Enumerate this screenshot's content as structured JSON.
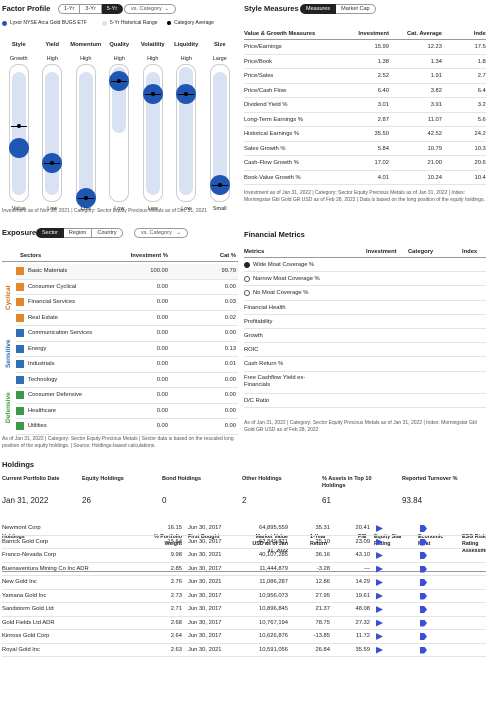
{
  "factor": {
    "title": "Factor Profile",
    "tabs": [
      "1-Yr",
      "3-Yr",
      "5-Yr"
    ],
    "active_tab": "5-Yr",
    "compare": "vs. Category",
    "legend": [
      "Lyxor NYSE Arca Gold BUGS ETF",
      "5-Yr Historical Range",
      "Category Average"
    ],
    "columns": [
      {
        "name": "Style",
        "top": "Growth",
        "bottom": "Value",
        "range": [
          0.06,
          0.95
        ],
        "fund": 0.61,
        "cat": 0.45
      },
      {
        "name": "Yield",
        "top": "High",
        "bottom": "Low",
        "range": [
          0.06,
          0.95
        ],
        "fund": 0.72,
        "cat": 0.72
      },
      {
        "name": "Momentum",
        "top": "High",
        "bottom": "Low",
        "range": [
          0.06,
          0.95
        ],
        "fund": 0.97,
        "cat": 0.97
      },
      {
        "name": "Quality",
        "top": "High",
        "bottom": "Low",
        "range": [
          0.02,
          0.5
        ],
        "fund": 0.12,
        "cat": 0.12
      },
      {
        "name": "Volatility",
        "top": "High",
        "bottom": "Low",
        "range": [
          0.06,
          0.95
        ],
        "fund": 0.22,
        "cat": 0.22
      },
      {
        "name": "Liquidity",
        "top": "High",
        "bottom": "Low",
        "range": [
          0.02,
          0.95
        ],
        "fund": 0.22,
        "cat": 0.22
      },
      {
        "name": "Size",
        "top": "Large",
        "bottom": "Small",
        "range": [
          0.06,
          0.95
        ],
        "fund": 0.88,
        "cat": 0.88
      }
    ],
    "note": "Investment as of Nov 30, 2021 | Category: Sector Equity Precious Metals as of Dec 31, 2021"
  },
  "style": {
    "title": "Style Measures",
    "tabs": [
      "Measures",
      "Market Cap"
    ],
    "active_tab": "Measures",
    "headers": [
      "Value & Growth Measures",
      "Investment",
      "Cat. Average",
      "Index"
    ],
    "rows": [
      [
        "Price/Earnings",
        "15.99",
        "12.23",
        "17.59"
      ],
      [
        "Price/Book",
        "1.38",
        "1.34",
        "1.81"
      ],
      [
        "Price/Sales",
        "2.52",
        "1.91",
        "2.70"
      ],
      [
        "Price/Cash Flow",
        "6.40",
        "3.82",
        "6.43"
      ],
      [
        "Dividend Yield %",
        "3.01",
        "3.91",
        "3.22"
      ],
      [
        "Long-Term Earnings %",
        "2.87",
        "11.07",
        "5.66"
      ],
      [
        "Historical Earnings %",
        "35.50",
        "42.52",
        "24.20"
      ],
      [
        "Sales Growth %",
        "5.84",
        "10.79",
        "10.32"
      ],
      [
        "Cash-Flow Growth %",
        "17.02",
        "21.00",
        "20.66"
      ],
      [
        "Book-Value Growth %",
        "4.01",
        "10.24",
        "10.45"
      ]
    ],
    "note": "Investment as of Jan 31, 2022 | Category: Sector Equity Precious Metals as of Jan 31, 2022 | Index: Morningstar Gbl Gold GR USD as of Feb 28, 2022 | Data is based on the long position of the equity holdings."
  },
  "exposure": {
    "title": "Exposure",
    "tabs": [
      "Sector",
      "Region",
      "Country"
    ],
    "active_tab": "Sector",
    "compare": "vs. Category",
    "headers": [
      "Sectors",
      "Investment %",
      "Cat %"
    ],
    "groups": [
      "Cyclical",
      "Sensitive",
      "Defensive"
    ],
    "rows": [
      {
        "name": "Basic Materials",
        "inv": "100.00",
        "cat": "99.79",
        "color": "#e0882b",
        "highlight": true
      },
      {
        "name": "Consumer Cyclical",
        "inv": "0.00",
        "cat": "0.00",
        "color": "#e0882b"
      },
      {
        "name": "Financial Services",
        "inv": "0.00",
        "cat": "0.03",
        "color": "#e0882b"
      },
      {
        "name": "Real Estate",
        "inv": "0.00",
        "cat": "0.02",
        "color": "#e0882b"
      },
      {
        "name": "Communication Services",
        "inv": "0.00",
        "cat": "0.00",
        "color": "#2f6fb8"
      },
      {
        "name": "Energy",
        "inv": "0.00",
        "cat": "0.13",
        "color": "#2f6fb8"
      },
      {
        "name": "Industrials",
        "inv": "0.00",
        "cat": "0.01",
        "color": "#2f6fb8"
      },
      {
        "name": "Technology",
        "inv": "0.00",
        "cat": "0.00",
        "color": "#2f6fb8"
      },
      {
        "name": "Consumer Defensive",
        "inv": "0.00",
        "cat": "0.00",
        "color": "#3c9a46"
      },
      {
        "name": "Healthcare",
        "inv": "0.00",
        "cat": "0.00",
        "color": "#3c9a46"
      },
      {
        "name": "Utilities",
        "inv": "0.00",
        "cat": "0.00",
        "color": "#3c9a46"
      }
    ],
    "note": "As of Jan 31, 2022 | Category: Sector Equity Precious Metals | Sector data is based on the rescaled long position of the equity holdings. | Source: Holdings-based calculations."
  },
  "financial": {
    "title": "Financial Metrics",
    "headers": [
      "Metrics",
      "Investment",
      "Category",
      "Index"
    ],
    "rows": [
      "Wide Moat Coverage %",
      "Narrow Moat Coverage %",
      "No Moat Coverage %",
      "Financial Health",
      "Profitability",
      "Growth",
      "ROIC",
      "Cash Return %",
      "Free Cashflow Yield ex-Financials",
      "D/C Ratio"
    ],
    "note": "As of Jan 31, 2022 | Category: Sector Equity Precious Metals as of Jan 31, 2022 | Index: Morningstar Gbl Gold GR USD as of Feb 28, 2022"
  },
  "holdings": {
    "title": "Holdings",
    "summary": [
      {
        "label": "Current Portfolio Date",
        "value": "Jan 31, 2022"
      },
      {
        "label": "Equity Holdings",
        "value": "26"
      },
      {
        "label": "Bond Holdings",
        "value": "0"
      },
      {
        "label": "Other Holdings",
        "value": "2"
      },
      {
        "label": "% Assets in Top 10 Holdings",
        "value": "61"
      },
      {
        "label": "Reported Turnover %",
        "value": "93.84"
      }
    ],
    "headers": [
      "Holdings",
      "% Portfolio Weight",
      "First Bought",
      "Market Value USD as of Jan 31, 2022",
      "1-Year Return",
      "P/E",
      "Equity Star Rating",
      "Economic Moat",
      "ESG Risk Rating Assessment"
    ],
    "rows": [
      [
        "Newmont Corp",
        "16.15",
        "Jun 30, 2017",
        "64,895,559",
        "35.31",
        "20.41"
      ],
      [
        "Barrick Gold Corp",
        "15.64",
        "Jun 30, 2017",
        "62,849,821",
        "25.10",
        "23.09"
      ],
      [
        "Franco-Nevada Corp",
        "9.98",
        "Jun 30, 2021",
        "40,107,285",
        "36.16",
        "43.10"
      ],
      [
        "Buenaventura Mining Co Inc ADR",
        "2.85",
        "Jun 30, 2017",
        "11,444,879",
        "-3.28",
        "—"
      ],
      [
        "New Gold Inc",
        "2.76",
        "Jun 30, 2021",
        "11,086,287",
        "12.86",
        "14.29"
      ],
      [
        "Yamana Gold Inc",
        "2.73",
        "Jun 30, 2017",
        "10,956,073",
        "27.95",
        "19.61"
      ],
      [
        "Sandstorm Gold Ltd",
        "2.71",
        "Jun 30, 2017",
        "10,896,845",
        "21.37",
        "48.08"
      ],
      [
        "Gold Fields Ltd ADR",
        "2.68",
        "Jun 30, 2017",
        "10,767,194",
        "78.75",
        "27.32"
      ],
      [
        "Kinross Gold Corp",
        "2.64",
        "Jun 30, 2017",
        "10,626,876",
        "-13.85",
        "11.72"
      ],
      [
        "Royal Gold Inc",
        "2.63",
        "Jun 30, 2021",
        "10,591,056",
        "26.84",
        "35.59"
      ]
    ]
  }
}
